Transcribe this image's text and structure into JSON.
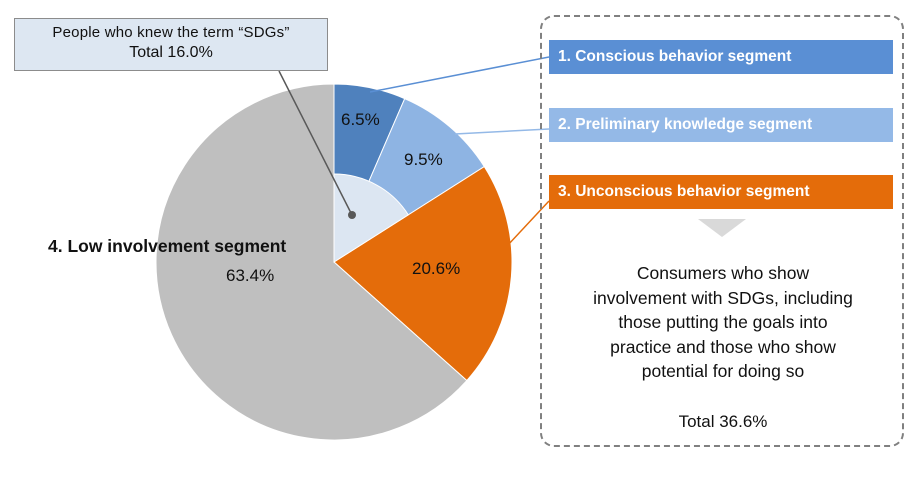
{
  "chart_data": {
    "type": "pie",
    "slices": [
      {
        "label": "1. Conscious behavior segment",
        "value": 6.5,
        "value_label": "6.5%",
        "color": "#4f81bd"
      },
      {
        "label": "2. Preliminary knowledge segment",
        "value": 9.5,
        "value_label": "9.5%",
        "color": "#8eb4e3"
      },
      {
        "label": "3. Unconscious behavior segment",
        "value": 20.6,
        "value_label": "20.6%",
        "color": "#e46c0a"
      },
      {
        "label": "4. Low involvement segment",
        "value": 63.4,
        "value_label": "63.4%",
        "color": "#bfbfbf"
      }
    ],
    "inner_group": {
      "label": "People who knew the term “SDGs”",
      "total_label": "Total  16.0%",
      "value": 16.0,
      "color": "#dce6f2"
    }
  },
  "segments_panel": {
    "seg1": "1. Conscious behavior segment",
    "seg2": "2. Preliminary knowledge segment",
    "seg3": "3. Unconscious behavior segment",
    "description_lines": [
      "Consumers who show",
      "involvement with SDGs, including",
      "those putting the goals into",
      "practice and those who show",
      "potential for doing so"
    ],
    "total": "Total 36.6%"
  },
  "colors": {
    "seg1_box": "#5a8fd4",
    "seg2_box": "#94b9e7",
    "seg3_box": "#e46c0a",
    "frame": "#808080"
  }
}
